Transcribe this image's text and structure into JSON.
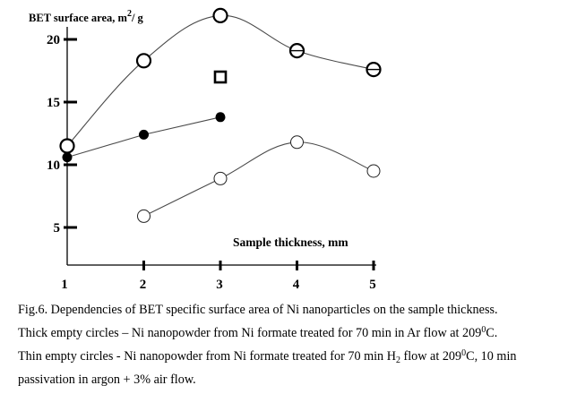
{
  "chart_data": {
    "type": "scatter",
    "ylabel": "BET surface area, m",
    "ylabel_sup": "2",
    "ylabel_tail": "/ g",
    "xlabel": "Sample thickness, mm",
    "xlim": [
      1,
      5
    ],
    "ylim": [
      4,
      22
    ],
    "xticks": [
      1,
      2,
      3,
      4,
      5
    ],
    "yticks": [
      5,
      10,
      15,
      20
    ],
    "series": [
      {
        "marker": "thick-empty-circle",
        "line": true,
        "x": [
          1,
          2,
          3,
          4,
          5
        ],
        "y": [
          11.5,
          18.3,
          21.9,
          19.1,
          17.6
        ]
      },
      {
        "marker": "filled-circle",
        "line": true,
        "x": [
          1,
          2,
          3
        ],
        "y": [
          10.6,
          12.4,
          13.8
        ]
      },
      {
        "marker": "thin-empty-circle",
        "line": true,
        "x": [
          2,
          3,
          4,
          5
        ],
        "y": [
          5.9,
          8.9,
          11.8,
          9.5
        ]
      },
      {
        "marker": "open-square",
        "line": false,
        "x": [
          3
        ],
        "y": [
          17.0
        ]
      }
    ]
  },
  "caption": {
    "line1": "Fig.6. Dependencies of BET specific surface area of Ni nanoparticles on the sample thickness.",
    "line2": "Thick empty circles – Ni nanopowder from Ni formate treated for 70 min in Ar flow at 209",
    "line2_sup": "0",
    "line2_end": "C.",
    "line3_a": "Thin empty circles - Ni nanopowder from Ni formate treated for 70 min H",
    "line3_sub": "2",
    "line3_b": " flow at 209",
    "line3_sup": "0",
    "line3_c": "C, 10 min",
    "line4": "passivation in argon + 3% air flow."
  }
}
